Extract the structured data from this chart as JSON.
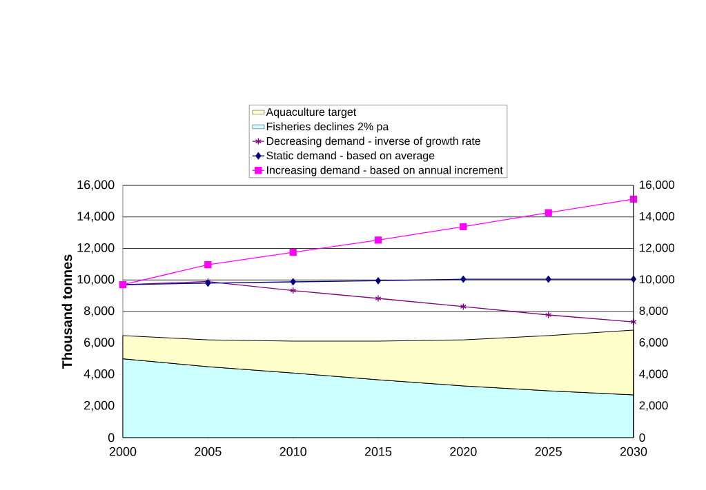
{
  "chart_data": {
    "type": "line",
    "ylabel": "Thousand tonnes",
    "x": [
      2000,
      2005,
      2010,
      2015,
      2020,
      2025,
      2030
    ],
    "xlim": [
      2000,
      2030
    ],
    "xticks": [
      2000,
      2005,
      2010,
      2015,
      2020,
      2025,
      2030
    ],
    "ylim": [
      0,
      16000
    ],
    "yticks": [
      0,
      {
        "value": 2000,
        "label": "2,000"
      },
      {
        "value": 4000,
        "label": "4,000"
      },
      {
        "value": 6000,
        "label": "6,000"
      },
      {
        "value": 8000,
        "label": "8,000"
      },
      {
        "value": 10000,
        "label": "10,000"
      },
      {
        "value": 12000,
        "label": "12,000"
      },
      {
        "value": 14000,
        "label": "14,000"
      },
      {
        "value": 16000,
        "label": "16,000"
      }
    ],
    "y2lim": [
      0,
      16000
    ],
    "y2ticks": [
      0,
      {
        "value": 2000,
        "label": "2,000"
      },
      {
        "value": 4000,
        "label": "4,000"
      },
      {
        "value": 6000,
        "label": "6,000"
      },
      {
        "value": 8000,
        "label": "8,000"
      },
      {
        "value": 10000,
        "label": "10,000"
      },
      {
        "value": 12000,
        "label": "12,000"
      },
      {
        "value": 14000,
        "label": "14,000"
      },
      {
        "value": 16000,
        "label": "16,000"
      }
    ],
    "grid": "y",
    "legend": "top",
    "stacked": true,
    "series": [
      {
        "name": "Fisheries declines 2% pa",
        "type": "area",
        "color": "#ccffff",
        "values": [
          5000,
          4500,
          4100,
          3670,
          3280,
          2970,
          2710
        ]
      },
      {
        "name": "Aquaculture target",
        "type": "area",
        "color": "#ffffcc",
        "values": [
          1470,
          1700,
          2020,
          2450,
          2920,
          3500,
          4110
        ]
      },
      {
        "name": "Decreasing demand - inverse of growth rate",
        "color": "#800080",
        "marker": "cross",
        "values": [
          9700,
          9900,
          9330,
          8830,
          8310,
          7780,
          7340
        ]
      },
      {
        "name": "Static demand - based on average",
        "color": "#000080",
        "marker": "diamond",
        "values": [
          9700,
          9800,
          9880,
          9950,
          10050,
          10050,
          10050
        ]
      },
      {
        "name": "Increasing demand - based on annual increment",
        "color": "#ff00ff",
        "marker": "square",
        "values": [
          9700,
          10970,
          11750,
          12530,
          13380,
          14270,
          15130
        ]
      }
    ]
  }
}
